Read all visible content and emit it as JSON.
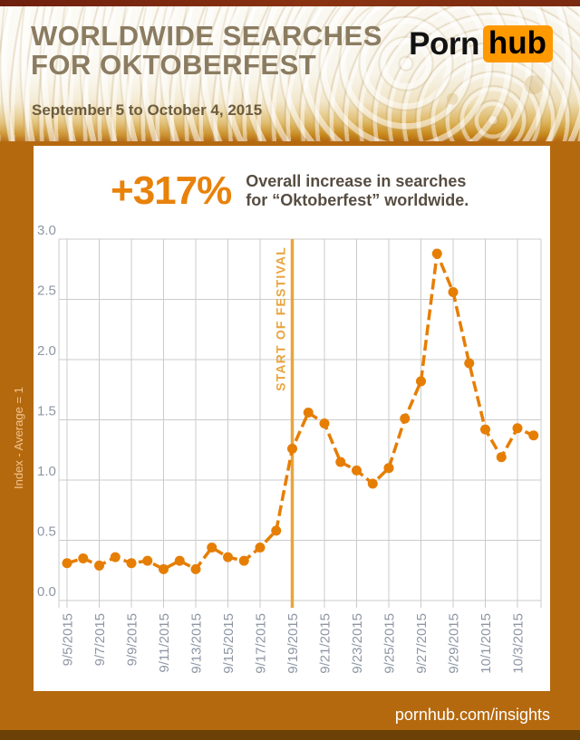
{
  "header": {
    "title_line1": "WORLDWIDE SEARCHES",
    "title_line2": "FOR OKTOBERFEST",
    "subtitle": "September 5 to October 4, 2015",
    "logo": {
      "part1": "Porn",
      "part2": "hub"
    }
  },
  "stat": {
    "value": "+317%",
    "description_line1": "Overall increase in searches",
    "description_line2": "for “Oktoberfest” worldwide."
  },
  "chart_data": {
    "type": "line",
    "x": [
      "9/5/2015",
      "9/6/2015",
      "9/7/2015",
      "9/8/2015",
      "9/9/2015",
      "9/10/2015",
      "9/11/2015",
      "9/12/2015",
      "9/13/2015",
      "9/14/2015",
      "9/15/2015",
      "9/16/2015",
      "9/17/2015",
      "9/18/2015",
      "9/19/2015",
      "9/20/2015",
      "9/21/2015",
      "9/22/2015",
      "9/23/2015",
      "9/24/2015",
      "9/25/2015",
      "9/26/2015",
      "9/27/2015",
      "9/28/2015",
      "9/29/2015",
      "9/30/2015",
      "10/1/2015",
      "10/2/2015",
      "10/3/2015",
      "10/4/2015"
    ],
    "values": [
      0.31,
      0.35,
      0.29,
      0.36,
      0.31,
      0.33,
      0.26,
      0.33,
      0.26,
      0.44,
      0.36,
      0.33,
      0.44,
      0.58,
      1.26,
      1.56,
      1.47,
      1.15,
      1.08,
      0.97,
      1.1,
      1.51,
      1.82,
      2.88,
      2.56,
      1.97,
      1.42,
      1.19,
      1.43,
      1.37
    ],
    "x_tick_labels": [
      "9/5/2015",
      "9/7/2015",
      "9/9/2015",
      "9/11/2015",
      "9/13/2015",
      "9/15/2015",
      "9/17/2015",
      "9/19/2015",
      "9/21/2015",
      "9/23/2015",
      "9/25/2015",
      "9/27/2015",
      "9/29/2015",
      "10/1/2015",
      "10/3/2015"
    ],
    "yticks": [
      0.0,
      0.5,
      1.0,
      1.5,
      2.0,
      2.5,
      3.0
    ],
    "ylim": [
      0,
      3.0
    ],
    "ylabel": "Index - Average = 1",
    "grid": true,
    "legend": "none",
    "annotation": {
      "label": "START OF FESTIVAL",
      "x": "9/19/2015"
    }
  },
  "colors": {
    "background": "#b5690f",
    "line": "#e67e04",
    "annotation": "#e9a43e",
    "grid": "#cbcbcb",
    "axis_text": "#8e96a4",
    "ylabel_text": "#efc48d",
    "stat_value": "#e8820b",
    "logo_orange": "#ff9900"
  },
  "footer": {
    "text": "pornhub.com/insights"
  }
}
